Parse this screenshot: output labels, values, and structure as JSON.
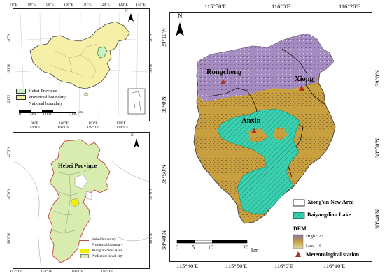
{
  "china_map": {
    "top_ticks": [
      "70°E",
      "80°E",
      "90°E",
      "100°E",
      "110°E",
      "120°E",
      "130°E",
      "140°E"
    ],
    "bottom_ticks": [
      "90°E",
      "100°E",
      "110°E",
      "120°E"
    ],
    "left_ticks": [
      "40°N",
      "30°N",
      "20°N"
    ],
    "right_ticks": [
      "40°N",
      "30°N"
    ],
    "legend": [
      {
        "label": "Hebei Province",
        "color": "#c8f0c0"
      },
      {
        "label": "Provincial boundary",
        "color": "#f6efa8"
      },
      {
        "label": "National boundary",
        "color": "#000000"
      }
    ],
    "scale_labels": [
      "0",
      "500",
      "1,000",
      "2,000"
    ],
    "scale_unit": "km",
    "north": "N"
  },
  "hebei_map": {
    "title": "Hebei Province",
    "top_ticks": [
      "114°0'E",
      "116°0'E",
      "118°0'E",
      "120°0'E"
    ],
    "bottom_ticks": [
      "112°0'E",
      "114°0'E",
      "116°0'E",
      "118°0'E"
    ],
    "left_ticks": [
      "42°0'N",
      "40°0'N",
      "38°0'N"
    ],
    "right_ticks": [
      "40°0'N",
      "38°0'N"
    ],
    "legend": [
      {
        "label": "Hebei boundary",
        "color": "#c05050"
      },
      {
        "label": "Provincial boundary",
        "color": "#888888"
      },
      {
        "label": "Xiong'an New Area",
        "color": "#f0f000"
      },
      {
        "label": "Prefecture-level city",
        "color": "#d8ecb0"
      }
    ],
    "north": "N"
  },
  "main_map": {
    "top_ticks": [
      "115°50'E",
      "116°0'E",
      "116°20'E"
    ],
    "bottom_ticks": [
      "115°40'E",
      "115°50'E",
      "116°0'E",
      "116°10'E"
    ],
    "left_ticks": [
      "39°10'N",
      "39°0'N",
      "38°50'N",
      "38°40'N"
    ],
    "right_ticks": [
      "39°0'N",
      "38°50'N",
      "38°40'N"
    ],
    "north": "N",
    "cities": [
      {
        "name": "Rongcheng"
      },
      {
        "name": "Xiong"
      },
      {
        "name": "Anxin"
      }
    ],
    "scale_labels": [
      "0",
      "5",
      "10",
      "20"
    ],
    "scale_unit": "km",
    "legend": {
      "xiongan": "Xiong'an New Area",
      "lake": "Baiyangdian Lake",
      "dem_title": "DEM",
      "dem_high": "High : 27",
      "dem_low": "Low : -6",
      "station": "Meteorological station"
    },
    "colors": {
      "lake": "#3ad0b0",
      "dem_high": "#8a6ea8",
      "dem_mid": "#c8a040",
      "dem_low": "#d8d8a8",
      "station": "#b03020"
    }
  }
}
